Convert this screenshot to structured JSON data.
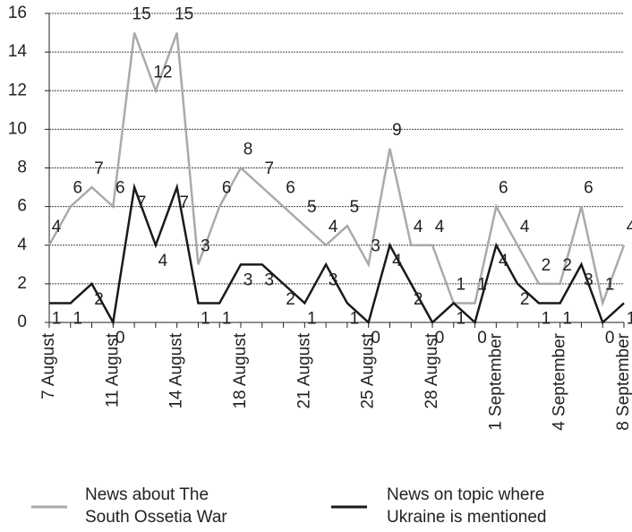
{
  "chart_data": {
    "type": "line",
    "categories": [
      "7 August",
      null,
      null,
      "11 August",
      null,
      null,
      "14 August",
      null,
      null,
      "18 August",
      null,
      null,
      "21 August",
      null,
      null,
      "25 August",
      null,
      null,
      "28 August",
      null,
      null,
      "1 September",
      null,
      null,
      "4 September",
      null,
      null,
      "8 September"
    ],
    "series": [
      {
        "name": "News about The South Ossetia War",
        "color": "#aaaaaa",
        "values": [
          4,
          6,
          7,
          6,
          15,
          12,
          15,
          3,
          6,
          8,
          7,
          6,
          5,
          4,
          5,
          3,
          9,
          4,
          4,
          1,
          1,
          6,
          4,
          2,
          2,
          6,
          1,
          4
        ]
      },
      {
        "name": "News on topic where Ukraine is mentioned",
        "color": "#1a1a1a",
        "values": [
          1,
          1,
          2,
          0,
          7,
          4,
          7,
          1,
          1,
          3,
          3,
          2,
          1,
          3,
          1,
          0,
          4,
          2,
          0,
          1,
          0,
          4,
          2,
          1,
          1,
          3,
          0,
          1
        ]
      }
    ],
    "ylim": [
      0,
      16
    ],
    "yticks": [
      0,
      2,
      4,
      6,
      8,
      10,
      12,
      14,
      16
    ],
    "grid": true,
    "legend": "bottom"
  }
}
